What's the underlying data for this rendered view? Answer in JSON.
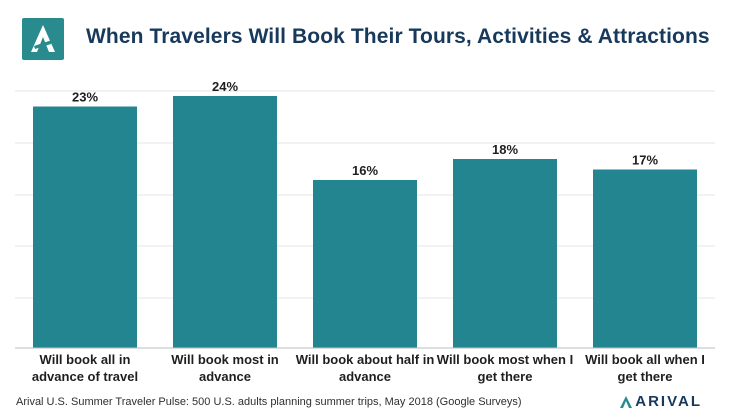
{
  "header": {
    "title": "When Travelers Will Book Their Tours, Activities & Attractions",
    "logo_icon": "arival-logo-icon",
    "accent_color": "#2a8b8f"
  },
  "chart_data": {
    "type": "bar",
    "title": "When Travelers Will Book Their Tours, Activities & Attractions",
    "xlabel": "",
    "ylabel": "",
    "categories": [
      [
        "Will book all in",
        "advance of travel"
      ],
      [
        "Will book most in",
        "advance"
      ],
      [
        "Will book about half in",
        "advance"
      ],
      [
        "Will book most when I",
        "get there"
      ],
      [
        "Will book all when I",
        "get there"
      ]
    ],
    "values": [
      23,
      24,
      16,
      18,
      17
    ],
    "data_labels": [
      "23%",
      "24%",
      "16%",
      "18%",
      "17%"
    ],
    "ylim": [
      0,
      24
    ],
    "grid": true,
    "legend": "none",
    "bar_color": "#228590"
  },
  "footer": {
    "source": "Arival U.S. Summer Traveler Pulse: 500 U.S. adults planning summer trips, May 2018 (Google Surveys)",
    "brand": "ARIVAL"
  }
}
